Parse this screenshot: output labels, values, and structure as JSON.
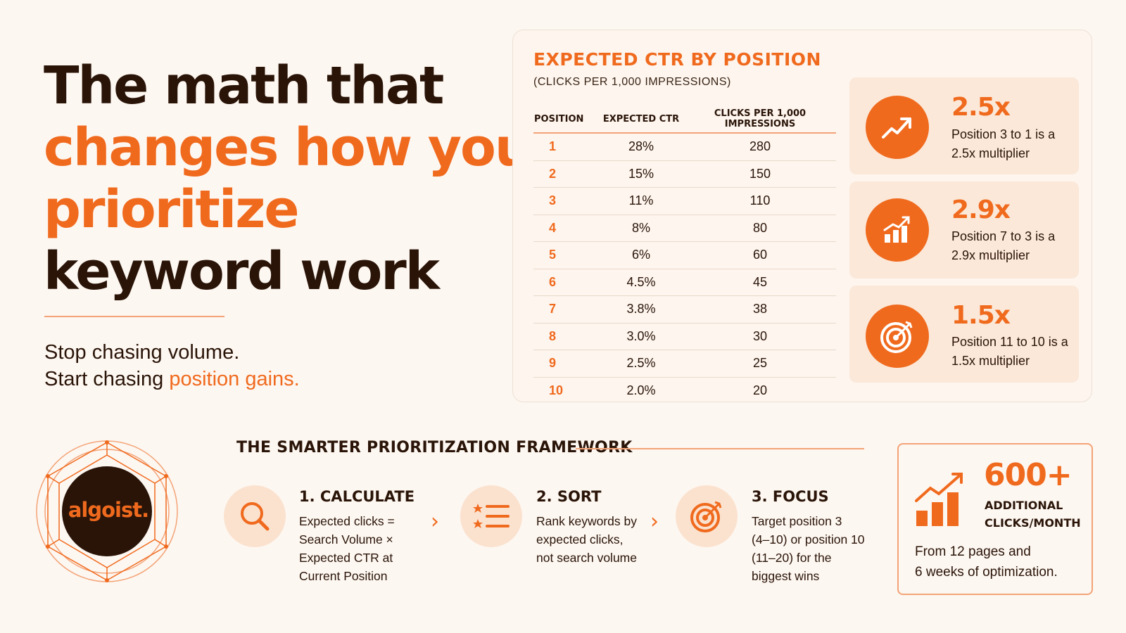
{
  "headline": {
    "line1": "The math that",
    "line2": "changes how you",
    "line3": "prioritize",
    "line4": "keyword work"
  },
  "subtitle": {
    "line1": "Stop chasing volume.",
    "line2_prefix": "Start chasing ",
    "line2_highlight": "position gains."
  },
  "ctr_table": {
    "title": "EXPECTED CTR BY POSITION",
    "subtitle": "(CLICKS PER 1,000 IMPRESSIONS)",
    "headers": [
      "POSITION",
      "EXPECTED CTR",
      "CLICKS PER 1,000 IMPRESSIONS"
    ],
    "rows": [
      {
        "position": "1",
        "ctr": "28%",
        "clicks": "280"
      },
      {
        "position": "2",
        "ctr": "15%",
        "clicks": "150"
      },
      {
        "position": "3",
        "ctr": "11%",
        "clicks": "110"
      },
      {
        "position": "4",
        "ctr": "8%",
        "clicks": "80"
      },
      {
        "position": "5",
        "ctr": "6%",
        "clicks": "60"
      },
      {
        "position": "6",
        "ctr": "4.5%",
        "clicks": "45"
      },
      {
        "position": "7",
        "ctr": "3.8%",
        "clicks": "38"
      },
      {
        "position": "8",
        "ctr": "3.0%",
        "clicks": "30"
      },
      {
        "position": "9",
        "ctr": "2.5%",
        "clicks": "25"
      },
      {
        "position": "10",
        "ctr": "2.0%",
        "clicks": "20"
      }
    ]
  },
  "multipliers": [
    {
      "value": "2.5x",
      "text": "Position 3 to 1 is a 2.5x multiplier",
      "icon": "trend-up-icon"
    },
    {
      "value": "2.9x",
      "text": "Position 7 to 3 is a 2.9x multiplier",
      "icon": "bar-chart-up-icon"
    },
    {
      "value": "1.5x",
      "text": "Position 11 to 10 is a 1.5x multiplier",
      "icon": "target-icon"
    }
  ],
  "logo": {
    "text": "algoist."
  },
  "framework": {
    "title": "THE SMARTER PRIORITIZATION FRAMEWORK",
    "steps": [
      {
        "head": "1. CALCULATE",
        "line1": "Expected clicks =",
        "line2": "Search Volume ×",
        "line3": "Expected CTR at",
        "line4": "Current Position",
        "icon": "search-icon"
      },
      {
        "head": "2. SORT",
        "line1": "Rank keywords by",
        "line2": "expected clicks,",
        "line3": "not search volume",
        "line4": "",
        "icon": "ranked-list-icon"
      },
      {
        "head": "3. FOCUS",
        "line1": "Target position 3",
        "line2": "(4–10) or position 10",
        "line3": "(11–20) for the",
        "line4": "biggest wins",
        "icon": "target-icon"
      }
    ]
  },
  "result": {
    "value": "600+",
    "label_line1": "ADDITIONAL",
    "label_line2": "CLICKS/MONTH",
    "body_line1": "From 12 pages and",
    "body_line2": "6 weeks of optimization."
  },
  "colors": {
    "accent": "#f06a1e",
    "dark": "#2a1408",
    "background": "#fdf7f1",
    "tint": "#fbe8d8"
  }
}
